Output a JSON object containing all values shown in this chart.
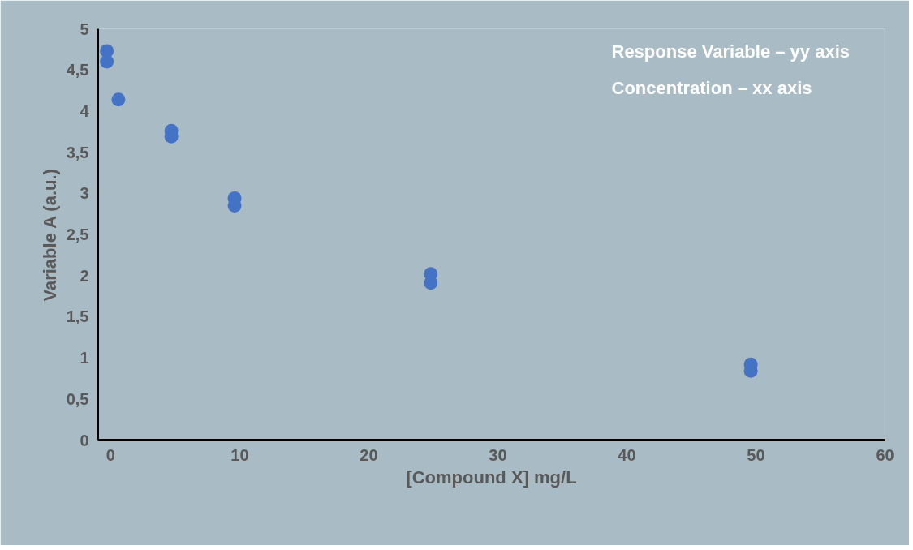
{
  "chart_data": {
    "type": "scatter",
    "xlabel": "[Compound X] mg/L",
    "ylabel": "Variable A (a.u.)",
    "x": [
      -0.3,
      -0.3,
      0.6,
      4.7,
      4.7,
      9.6,
      9.6,
      24.8,
      24.8,
      49.6,
      49.6
    ],
    "series": [
      {
        "color": "#4472c4",
        "values": [
          4.73,
          4.6,
          4.14,
          3.76,
          3.69,
          2.94,
          2.85,
          2.02,
          1.91,
          0.92,
          0.84
        ]
      }
    ],
    "xlim": [
      -1,
      60
    ],
    "xticks": [
      0,
      10,
      20,
      30,
      40,
      50,
      60
    ],
    "ylim": [
      0,
      5
    ],
    "yticks": [
      0,
      {
        "value": 0.5,
        "label": "0,5"
      },
      1,
      {
        "value": 1.5,
        "label": "1,5"
      },
      2,
      {
        "value": 2.5,
        "label": "2,5"
      },
      3,
      {
        "value": 3.5,
        "label": "3,5"
      },
      4,
      {
        "value": 4.5,
        "label": "4,5"
      },
      5
    ],
    "annotations": [
      "Response Variable – yy axis",
      "Concentration – xx axis"
    ],
    "marker": "circle",
    "grid": false
  }
}
